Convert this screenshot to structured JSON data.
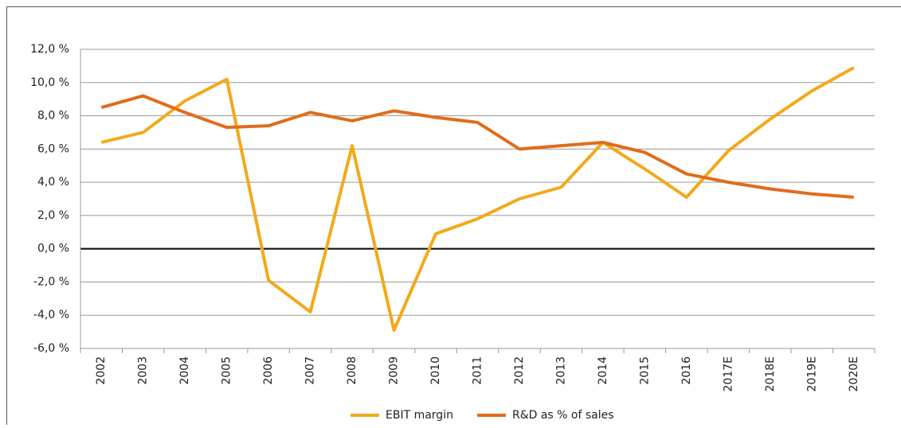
{
  "chart_data": {
    "type": "line",
    "categories": [
      "2002",
      "2003",
      "2004",
      "2005",
      "2006",
      "2007",
      "2008",
      "2009",
      "2010",
      "2011",
      "2012",
      "2013",
      "2014",
      "2015",
      "2016",
      "2017E",
      "2018E",
      "2019E",
      "2020E"
    ],
    "series": [
      {
        "name": "EBIT margin",
        "color": "#f2a91b",
        "values": [
          6.4,
          7.0,
          8.9,
          10.2,
          -1.9,
          -3.8,
          6.2,
          -4.9,
          0.9,
          1.8,
          3.0,
          3.7,
          6.4,
          4.8,
          3.1,
          5.9,
          7.8,
          9.5,
          10.9
        ]
      },
      {
        "name": "R&D as % of sales",
        "color": "#e06c1b",
        "values": [
          8.5,
          9.2,
          8.2,
          7.3,
          7.4,
          8.2,
          7.7,
          8.3,
          7.9,
          7.6,
          6.0,
          6.2,
          6.4,
          5.8,
          4.5,
          4.0,
          3.6,
          3.3,
          3.1
        ]
      }
    ],
    "ylim": [
      -6,
      12
    ],
    "yticks": [
      {
        "value": -6,
        "label": "-6,0 %"
      },
      {
        "value": -4,
        "label": "-4,0 %"
      },
      {
        "value": -2,
        "label": "-2,0 %"
      },
      {
        "value": 0,
        "label": "0,0 %"
      },
      {
        "value": 2,
        "label": "2,0 %"
      },
      {
        "value": 4,
        "label": "4,0 %"
      },
      {
        "value": 6,
        "label": "6,0 %"
      },
      {
        "value": 8,
        "label": "8,0 %"
      },
      {
        "value": 10,
        "label": "10,0 %"
      },
      {
        "value": 12,
        "label": "12,0 %"
      }
    ],
    "grid": true,
    "legend": "bottom"
  }
}
